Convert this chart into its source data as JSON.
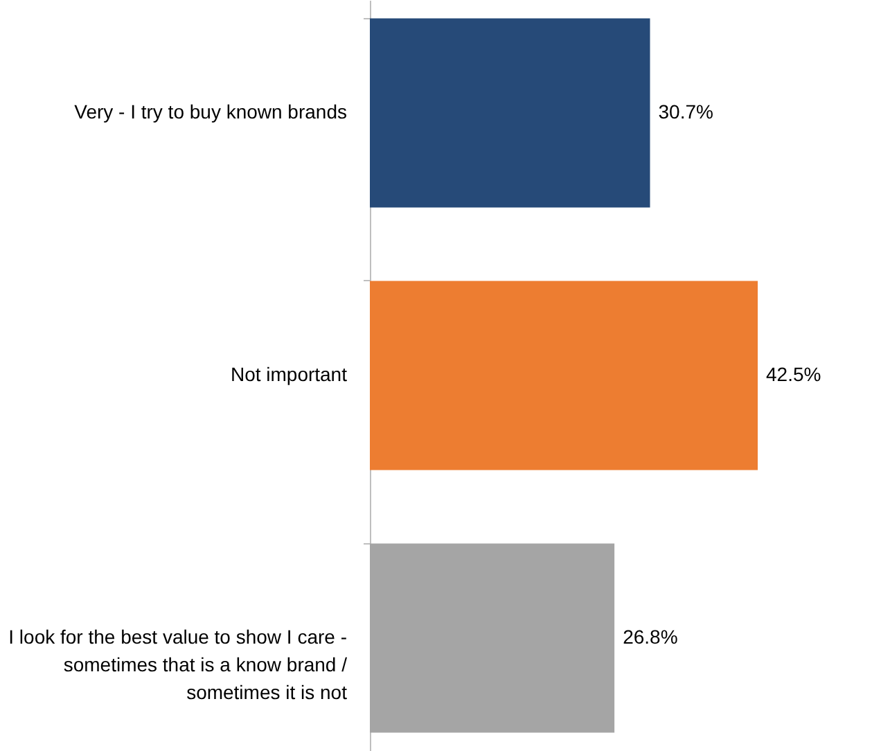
{
  "chart_data": {
    "type": "bar",
    "orientation": "horizontal",
    "categories": [
      "Very - I try to buy known brands",
      "Not important",
      "I look for the best value to show I care -\nsometimes that is a know brand /\nsometimes it is not"
    ],
    "values": [
      30.7,
      42.5,
      26.8
    ],
    "colors": [
      "#264a78",
      "#ed7d31",
      "#a5a5a5"
    ],
    "value_labels": [
      "30.7%",
      "42.5%",
      "26.8%"
    ]
  }
}
